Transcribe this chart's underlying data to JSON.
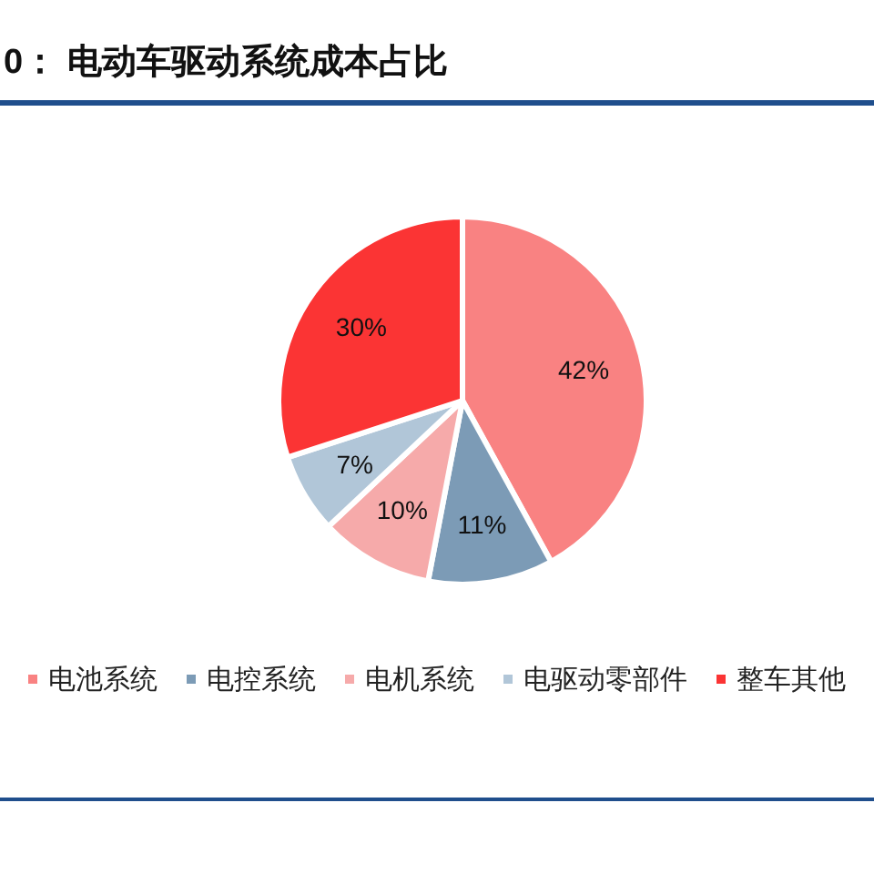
{
  "chart_data": {
    "type": "pie",
    "title": "0： 电动车驱动系统成本占比",
    "categories": [
      "电池系统",
      "电控系统",
      "电机系统",
      "电驱动零部件",
      "整车其他"
    ],
    "values": [
      42,
      11,
      10,
      7,
      30
    ],
    "colors": [
      "#f98282",
      "#7c9bb6",
      "#f6aaaa",
      "#b1c6d8",
      "#fb3434"
    ],
    "value_labels": [
      "42%",
      "11%",
      "10%",
      "7%",
      "30%"
    ],
    "legend": "bottom"
  }
}
